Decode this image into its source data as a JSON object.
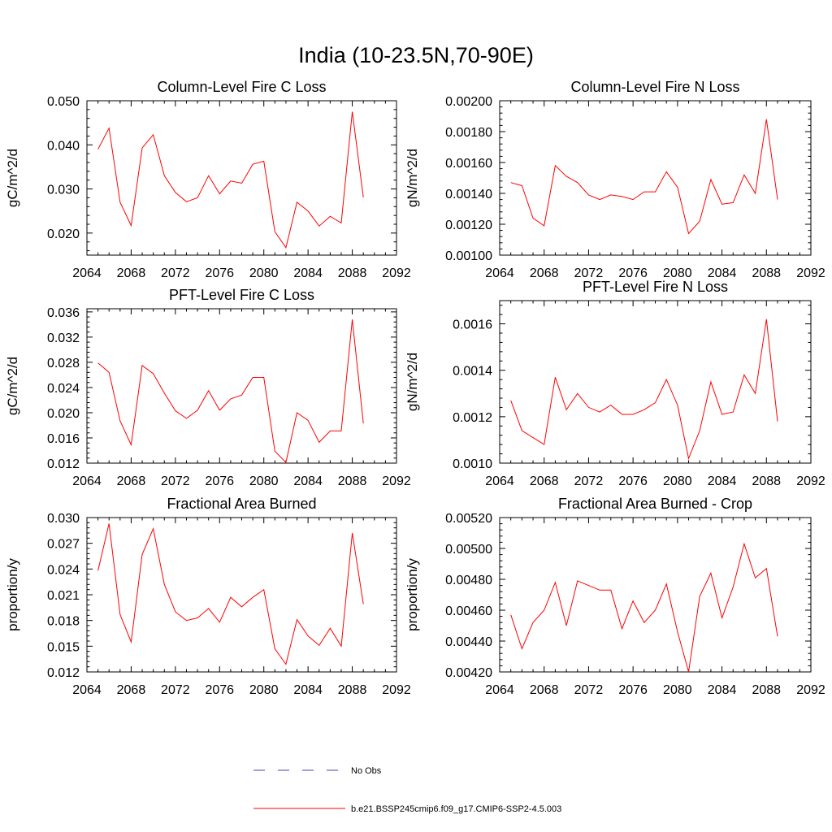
{
  "title": "India (10-23.5N,70-90E)",
  "legend": [
    {
      "label": "No Obs",
      "color": "#4a4ab0",
      "dash": true
    },
    {
      "label": "b.e21.BSSP245cmip6.f09_g17.CMIP6-SSP2-4.5.003",
      "color": "#ff0000",
      "dash": false
    }
  ],
  "chart_data": [
    {
      "type": "line",
      "title": "Column-Level Fire C Loss",
      "ylabel": "gC/m^2/d",
      "xlim": [
        2064,
        2092
      ],
      "ylim": [
        0.015,
        0.05
      ],
      "xticks": [
        2064,
        2068,
        2072,
        2076,
        2080,
        2084,
        2088,
        2092
      ],
      "yticks": [
        "0.020",
        "0.030",
        "0.040",
        "0.050"
      ],
      "x": [
        2065,
        2066,
        2067,
        2068,
        2069,
        2070,
        2071,
        2072,
        2073,
        2074,
        2075,
        2076,
        2077,
        2078,
        2079,
        2080,
        2081,
        2082,
        2083,
        2084,
        2085,
        2086,
        2087,
        2088,
        2089
      ],
      "series": [
        {
          "values": [
            0.039,
            0.0438,
            0.027,
            0.0217,
            0.0393,
            0.0423,
            0.033,
            0.0292,
            0.0271,
            0.028,
            0.033,
            0.0289,
            0.0318,
            0.0313,
            0.0356,
            0.0363,
            0.0203,
            0.0167,
            0.027,
            0.025,
            0.0216,
            0.0238,
            0.0223,
            0.0475,
            0.0281
          ],
          "color": "#ff0000"
        }
      ]
    },
    {
      "type": "line",
      "title": "Column-Level Fire N Loss",
      "ylabel": "gN/m^2/d",
      "xlim": [
        2064,
        2092
      ],
      "ylim": [
        0.001,
        0.002
      ],
      "xticks": [
        2064,
        2068,
        2072,
        2076,
        2080,
        2084,
        2088,
        2092
      ],
      "yticks": [
        "0.00100",
        "0.00120",
        "0.00140",
        "0.00160",
        "0.00180",
        "0.00200"
      ],
      "x": [
        2065,
        2066,
        2067,
        2068,
        2069,
        2070,
        2071,
        2072,
        2073,
        2074,
        2075,
        2076,
        2077,
        2078,
        2079,
        2080,
        2081,
        2082,
        2083,
        2084,
        2085,
        2086,
        2087,
        2088,
        2089
      ],
      "series": [
        {
          "values": [
            0.00147,
            0.00145,
            0.00124,
            0.00119,
            0.00158,
            0.00151,
            0.00147,
            0.00139,
            0.00136,
            0.00139,
            0.00138,
            0.00136,
            0.00141,
            0.00141,
            0.00154,
            0.00144,
            0.00114,
            0.00122,
            0.00149,
            0.00133,
            0.00134,
            0.00152,
            0.0014,
            0.00188,
            0.00136
          ],
          "color": "#ff0000"
        }
      ]
    },
    {
      "type": "line",
      "title": "PFT-Level Fire C Loss",
      "ylabel": "gC/m^2/d",
      "xlim": [
        2064,
        2092
      ],
      "ylim": [
        0.012,
        0.0365
      ],
      "xticks": [
        2064,
        2068,
        2072,
        2076,
        2080,
        2084,
        2088,
        2092
      ],
      "yticks": [
        "0.012",
        "0.016",
        "0.020",
        "0.024",
        "0.028",
        "0.032",
        "0.036"
      ],
      "x": [
        2065,
        2066,
        2067,
        2068,
        2069,
        2070,
        2071,
        2072,
        2073,
        2074,
        2075,
        2076,
        2077,
        2078,
        2079,
        2080,
        2081,
        2082,
        2083,
        2084,
        2085,
        2086,
        2087,
        2088,
        2089
      ],
      "series": [
        {
          "values": [
            0.0279,
            0.0264,
            0.0187,
            0.0149,
            0.0275,
            0.0262,
            0.0231,
            0.0203,
            0.0191,
            0.0204,
            0.0235,
            0.0204,
            0.0222,
            0.0228,
            0.0256,
            0.0256,
            0.0139,
            0.0121,
            0.02,
            0.0188,
            0.0153,
            0.0171,
            0.0171,
            0.0348,
            0.0183
          ],
          "color": "#ff0000"
        }
      ]
    },
    {
      "type": "line",
      "title": "PFT-Level Fire N Loss",
      "ylabel": "gN/m^2/d",
      "xlim": [
        2064,
        2092
      ],
      "ylim": [
        0.001,
        0.0017
      ],
      "xticks": [
        2064,
        2068,
        2072,
        2076,
        2080,
        2084,
        2088,
        2092
      ],
      "yticks": [
        "0.0010",
        "0.0012",
        "0.0014",
        "0.0016"
      ],
      "x": [
        2065,
        2066,
        2067,
        2068,
        2069,
        2070,
        2071,
        2072,
        2073,
        2074,
        2075,
        2076,
        2077,
        2078,
        2079,
        2080,
        2081,
        2082,
        2083,
        2084,
        2085,
        2086,
        2087,
        2088,
        2089
      ],
      "series": [
        {
          "values": [
            0.00127,
            0.00114,
            0.00111,
            0.00108,
            0.00137,
            0.00123,
            0.0013,
            0.00124,
            0.00122,
            0.00125,
            0.00121,
            0.00121,
            0.00123,
            0.00126,
            0.00136,
            0.00125,
            0.00102,
            0.00114,
            0.00135,
            0.00121,
            0.00122,
            0.00138,
            0.0013,
            0.00162,
            0.00118
          ],
          "color": "#ff0000"
        }
      ]
    },
    {
      "type": "line",
      "title": "Fractional Area Burned",
      "ylabel": "proportion/y",
      "xlim": [
        2064,
        2092
      ],
      "ylim": [
        0.012,
        0.03
      ],
      "xticks": [
        2064,
        2068,
        2072,
        2076,
        2080,
        2084,
        2088,
        2092
      ],
      "yticks": [
        "0.012",
        "0.015",
        "0.018",
        "0.021",
        "0.024",
        "0.027",
        "0.030"
      ],
      "x": [
        2065,
        2066,
        2067,
        2068,
        2069,
        2070,
        2071,
        2072,
        2073,
        2074,
        2075,
        2076,
        2077,
        2078,
        2079,
        2080,
        2081,
        2082,
        2083,
        2084,
        2085,
        2086,
        2087,
        2088,
        2089
      ],
      "series": [
        {
          "values": [
            0.0238,
            0.0293,
            0.0187,
            0.0155,
            0.0257,
            0.0287,
            0.0222,
            0.019,
            0.018,
            0.0183,
            0.0194,
            0.0178,
            0.0207,
            0.0196,
            0.0207,
            0.0216,
            0.0147,
            0.0129,
            0.0181,
            0.0162,
            0.0151,
            0.0171,
            0.015,
            0.0282,
            0.0199
          ],
          "color": "#ff0000"
        }
      ]
    },
    {
      "type": "line",
      "title": "Fractional Area Burned - Crop",
      "ylabel": "proportion/y",
      "xlim": [
        2064,
        2092
      ],
      "ylim": [
        0.0042,
        0.0052
      ],
      "xticks": [
        2064,
        2068,
        2072,
        2076,
        2080,
        2084,
        2088,
        2092
      ],
      "yticks": [
        "0.00420",
        "0.00440",
        "0.00460",
        "0.00480",
        "0.00500",
        "0.00520"
      ],
      "x": [
        2065,
        2066,
        2067,
        2068,
        2069,
        2070,
        2071,
        2072,
        2073,
        2074,
        2075,
        2076,
        2077,
        2078,
        2079,
        2080,
        2081,
        2082,
        2083,
        2084,
        2085,
        2086,
        2087,
        2088,
        2089
      ],
      "series": [
        {
          "values": [
            0.00457,
            0.00435,
            0.00452,
            0.0046,
            0.00478,
            0.0045,
            0.00479,
            0.00476,
            0.00473,
            0.00473,
            0.00448,
            0.00466,
            0.00452,
            0.0046,
            0.00477,
            0.00446,
            0.0042,
            0.00469,
            0.00484,
            0.00455,
            0.00475,
            0.00503,
            0.00481,
            0.00487,
            0.00443
          ],
          "color": "#ff0000"
        }
      ]
    }
  ]
}
